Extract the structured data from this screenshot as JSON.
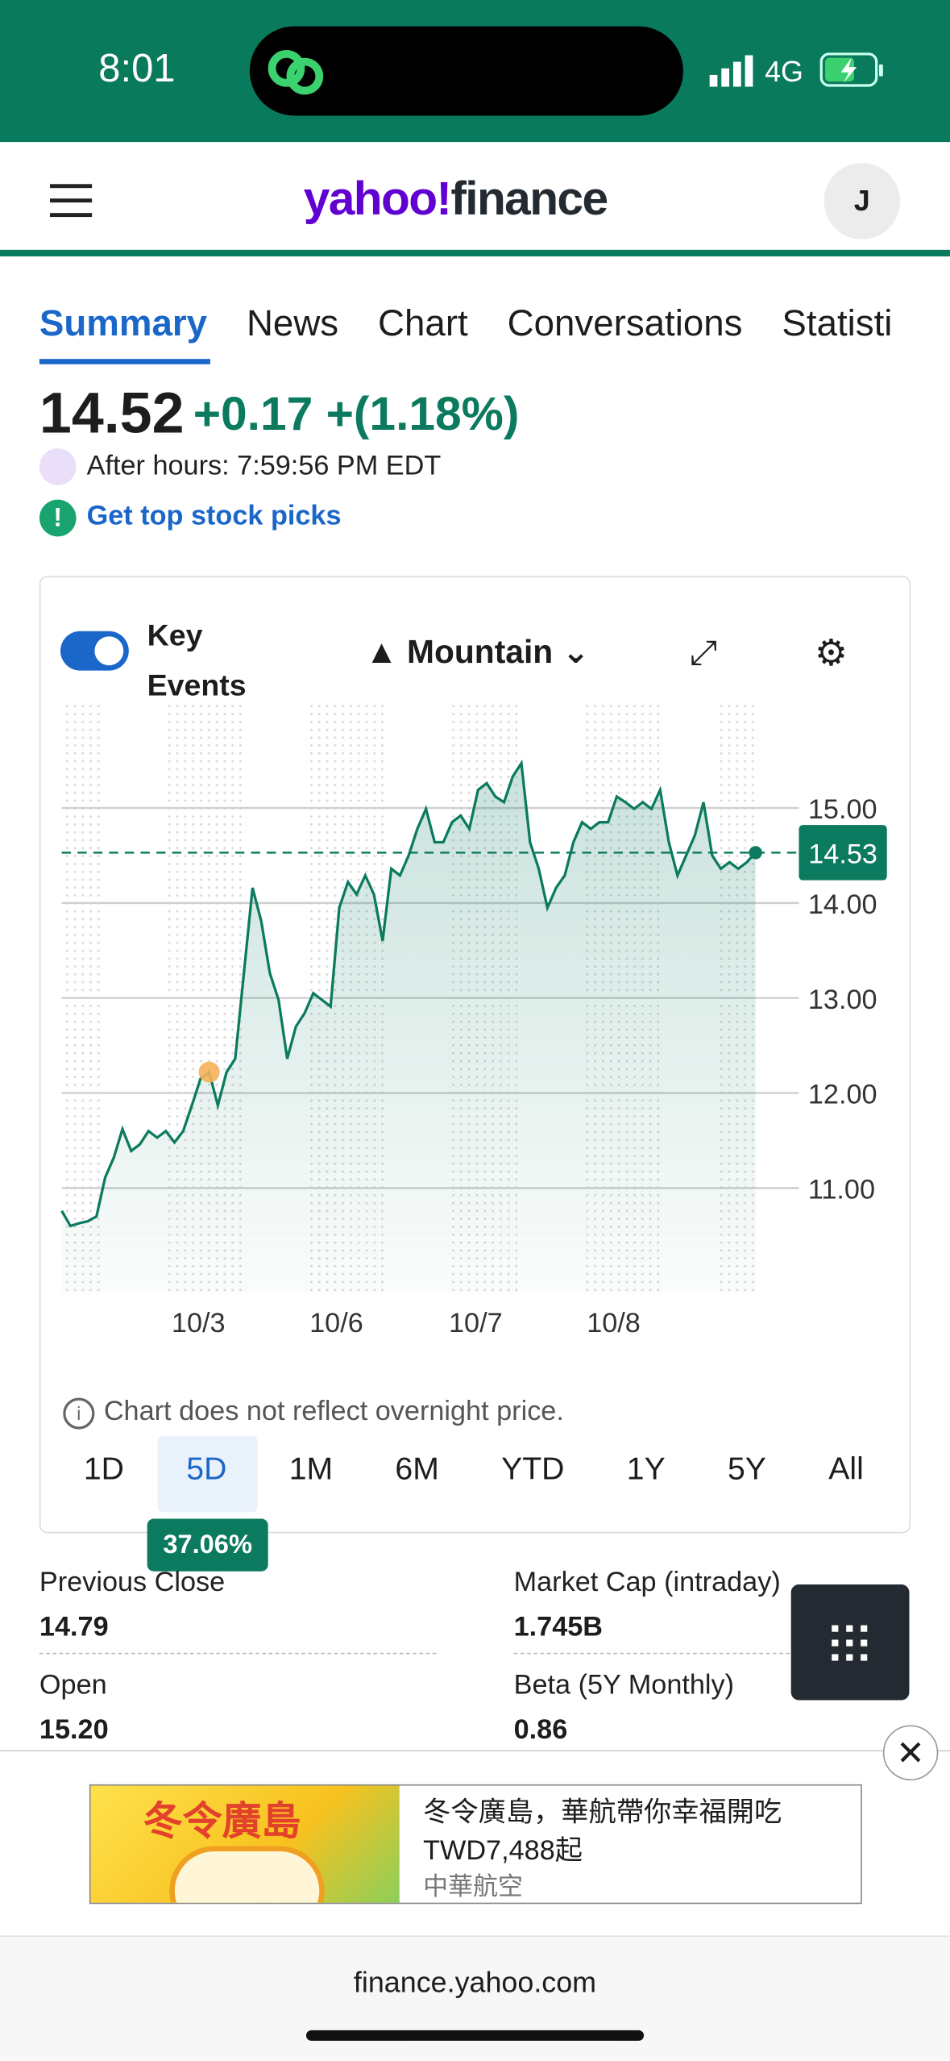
{
  "status_bar": {
    "time": "8:01",
    "network": "4G"
  },
  "header": {
    "logo_yahoo": "yahoo!",
    "logo_finance": "finance",
    "avatar": "J"
  },
  "tabs": [
    "Summary",
    "News",
    "Chart",
    "Conversations",
    "Statisti"
  ],
  "quote": {
    "price": "14.52",
    "change": "+0.17",
    "change_percent": "+(1.18%)",
    "after_hours": "After hours: 7:59:56 PM EDT",
    "promo": "Get top stock picks"
  },
  "chart_controls": {
    "toggle_label_1": "Key",
    "toggle_label_2": "Events",
    "chart_type": "Mountain"
  },
  "chart_data": {
    "type": "line",
    "color": "#0b7a5e",
    "values": [
      10.76,
      10.6,
      10.63,
      10.65,
      10.7,
      11.11,
      11.32,
      11.62,
      11.39,
      11.46,
      11.6,
      11.53,
      11.6,
      11.48,
      11.6,
      11.87,
      12.15,
      12.22,
      11.87,
      12.22,
      12.36,
      13.26,
      14.16,
      13.81,
      13.26,
      12.98,
      12.36,
      12.7,
      12.84,
      13.05,
      12.98,
      12.91,
      13.95,
      14.22,
      14.09,
      14.29,
      14.09,
      13.6,
      14.36,
      14.29,
      14.5,
      14.78,
      14.99,
      14.64,
      14.64,
      14.85,
      14.92,
      14.78,
      15.19,
      15.26,
      15.12,
      15.06,
      15.33,
      15.47,
      14.64,
      14.36,
      13.95,
      14.16,
      14.29,
      14.64,
      14.85,
      14.78,
      14.85,
      14.85,
      15.12,
      15.06,
      14.99,
      15.06,
      14.99,
      15.19,
      14.64,
      14.29,
      14.5,
      14.71,
      15.06,
      14.5,
      14.36,
      14.43,
      14.36,
      14.43,
      14.53
    ],
    "ylim": [
      9.9,
      16.1
    ],
    "yticks": [
      {
        "value": 11,
        "label": "11.00"
      },
      {
        "value": 12,
        "label": "12.00"
      },
      {
        "value": 13,
        "label": "13.00"
      },
      {
        "value": 14,
        "label": "14.00"
      },
      {
        "value": 15,
        "label": "15.00"
      }
    ],
    "current_price": 14.53,
    "event_index": 17,
    "x_labels": [
      "10/3",
      "10/6",
      "10/7",
      "10/8"
    ],
    "grid": true
  },
  "chart_note": "Chart does not reflect overnight price.",
  "ranges": [
    "1D",
    "5D",
    "1M",
    "6M",
    "YTD",
    "1Y",
    "5Y",
    "All"
  ],
  "range_tooltip": "37.06%",
  "stats": [
    {
      "label": "Previous Close",
      "value": "14.79"
    },
    {
      "label": "Market Cap (intraday)",
      "value": "1.745B"
    },
    {
      "label": "Open",
      "value": "15.20"
    },
    {
      "label": "Beta (5Y Monthly)",
      "value": "0.86"
    }
  ],
  "ad": {
    "image_text": "冬令廣島",
    "headline": "冬令廣島，華航帶你幸福開吃",
    "price": "TWD7,488起",
    "advertiser": "中華航空"
  },
  "footer": {
    "url": "finance.yahoo.com"
  }
}
